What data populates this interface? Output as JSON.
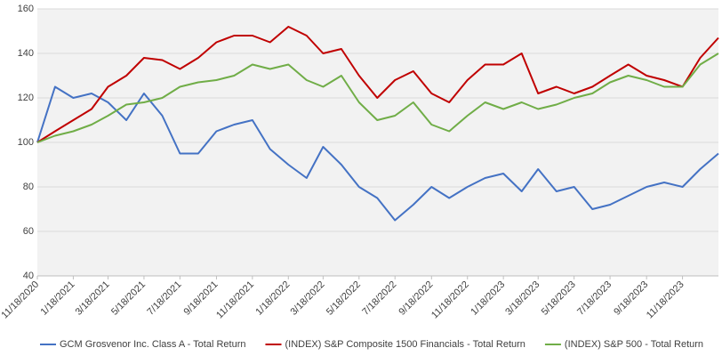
{
  "chart_data": {
    "type": "line",
    "x": [
      "11/18/2020",
      "12/18/2020",
      "1/18/2021",
      "2/18/2021",
      "3/18/2021",
      "4/18/2021",
      "5/18/2021",
      "6/18/2021",
      "7/18/2021",
      "8/18/2021",
      "9/18/2021",
      "10/18/2021",
      "11/18/2021",
      "12/18/2021",
      "1/18/2022",
      "2/18/2022",
      "3/18/2022",
      "4/18/2022",
      "5/18/2022",
      "6/18/2022",
      "7/18/2022",
      "8/18/2022",
      "9/18/2022",
      "10/18/2022",
      "11/18/2022",
      "12/18/2022",
      "1/18/2023",
      "2/18/2023",
      "3/18/2023",
      "4/18/2023",
      "5/18/2023",
      "6/18/2023",
      "7/18/2023",
      "8/18/2023",
      "9/18/2023",
      "10/18/2023",
      "11/18/2023",
      "12/18/2023",
      "1/18/2024"
    ],
    "series": [
      {
        "name": "GCM Grosvenor Inc. Class A - Total Return",
        "color": "#4472c4",
        "values": [
          100,
          125,
          120,
          122,
          118,
          110,
          122,
          112,
          95,
          95,
          105,
          108,
          110,
          97,
          90,
          84,
          98,
          90,
          80,
          75,
          65,
          72,
          80,
          75,
          80,
          84,
          86,
          78,
          88,
          78,
          80,
          70,
          72,
          76,
          80,
          82,
          80,
          88,
          95
        ]
      },
      {
        "name": "(INDEX) S&P Composite 1500 Financials  - Total Return",
        "color": "#c00000",
        "values": [
          100,
          105,
          110,
          115,
          125,
          130,
          138,
          137,
          133,
          138,
          145,
          148,
          148,
          145,
          152,
          148,
          140,
          142,
          130,
          120,
          128,
          132,
          122,
          118,
          128,
          135,
          135,
          140,
          122,
          125,
          122,
          125,
          130,
          135,
          130,
          128,
          125,
          138,
          147
        ]
      },
      {
        "name": "(INDEX) S&P 500 - Total Return",
        "color": "#70ad47",
        "values": [
          100,
          103,
          105,
          108,
          112,
          117,
          118,
          120,
          125,
          127,
          128,
          130,
          135,
          133,
          135,
          128,
          125,
          130,
          118,
          110,
          112,
          118,
          108,
          105,
          112,
          118,
          115,
          118,
          115,
          117,
          120,
          122,
          127,
          130,
          128,
          125,
          125,
          135,
          140
        ]
      }
    ],
    "xlim": [
      "11/18/2020",
      "1/18/2024"
    ],
    "xticks": [
      "11/18/2020",
      "1/18/2021",
      "3/18/2021",
      "5/18/2021",
      "7/18/2021",
      "9/18/2021",
      "11/18/2021",
      "1/18/2022",
      "3/18/2022",
      "5/18/2022",
      "7/18/2022",
      "9/18/2022",
      "11/18/2022",
      "1/18/2023",
      "3/18/2023",
      "5/18/2023",
      "7/18/2023",
      "9/18/2023",
      "11/18/2023"
    ],
    "ylim": [
      40,
      160
    ],
    "yticks": [
      40,
      60,
      80,
      100,
      120,
      140,
      160
    ],
    "grid": true,
    "legend": "bottom"
  }
}
